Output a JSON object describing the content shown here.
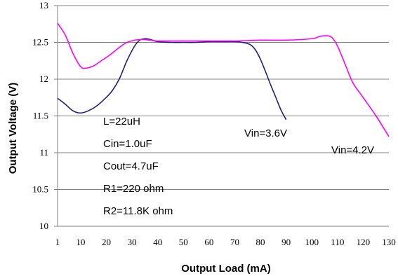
{
  "chart_data": {
    "type": "line",
    "title": "",
    "xlabel": "Output Load (mA)",
    "ylabel": "Output Voltage (V)",
    "xlim": [
      1,
      130
    ],
    "ylim": [
      10,
      13
    ],
    "x_ticks": [
      1,
      10,
      20,
      30,
      40,
      50,
      60,
      70,
      80,
      90,
      100,
      110,
      120,
      130
    ],
    "y_ticks": [
      "10",
      "10.5",
      "11",
      "11.5",
      "12",
      "12.5",
      "13"
    ],
    "grid": "horizontal",
    "series": [
      {
        "name": "Vin=3.6V",
        "color": "#1f1f7a",
        "x": [
          1,
          4,
          7,
          10,
          13,
          16,
          19,
          22,
          25,
          28,
          31,
          33,
          35,
          37,
          40,
          45,
          50,
          55,
          60,
          65,
          70,
          73,
          76,
          78,
          80,
          82,
          84,
          86,
          88,
          90
        ],
        "y": [
          11.74,
          11.66,
          11.57,
          11.54,
          11.57,
          11.63,
          11.72,
          11.83,
          12.0,
          12.25,
          12.45,
          12.53,
          12.55,
          12.54,
          12.51,
          12.5,
          12.5,
          12.5,
          12.51,
          12.51,
          12.51,
          12.5,
          12.47,
          12.4,
          12.27,
          12.1,
          11.92,
          11.75,
          11.58,
          11.45
        ]
      },
      {
        "name": "Vin=4.2V",
        "color": "#ff00ff",
        "x": [
          1,
          4,
          7,
          10,
          12,
          15,
          18,
          21,
          25,
          28,
          31,
          34,
          37,
          40,
          50,
          60,
          70,
          80,
          90,
          100,
          103,
          106,
          108,
          110,
          113,
          116,
          120,
          125,
          130
        ],
        "y": [
          12.76,
          12.6,
          12.35,
          12.17,
          12.15,
          12.18,
          12.25,
          12.32,
          12.43,
          12.5,
          12.53,
          12.54,
          12.53,
          12.52,
          12.52,
          12.52,
          12.52,
          12.53,
          12.53,
          12.55,
          12.58,
          12.59,
          12.56,
          12.45,
          12.2,
          11.95,
          11.75,
          11.5,
          11.22
        ]
      }
    ],
    "annotations": [
      "L=22uH",
      "Cin=1.0uF",
      "Cout=4.7uF",
      "R1=220 ohm",
      "R2=11.8K ohm"
    ],
    "series_labels": [
      "Vin=3.6V",
      "Vin=4.2V"
    ]
  }
}
